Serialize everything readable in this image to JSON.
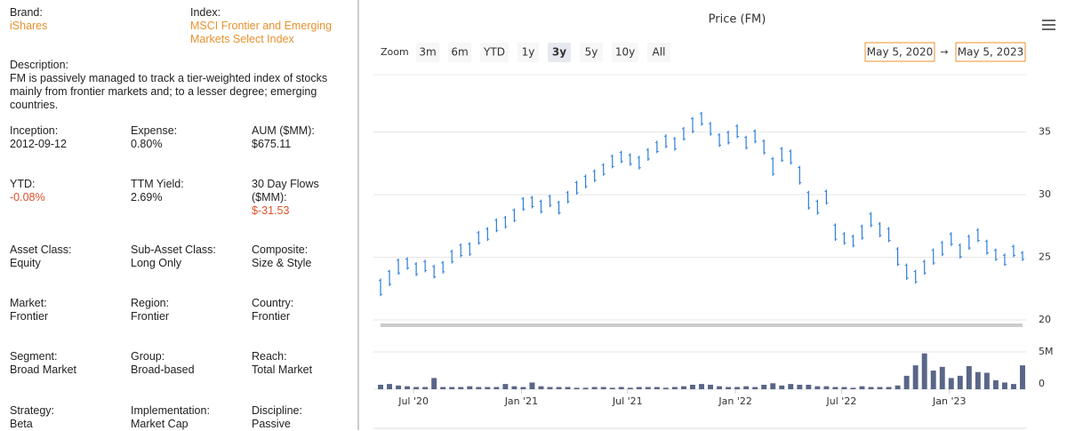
{
  "info": {
    "brand": {
      "label": "Brand:",
      "value": "iShares"
    },
    "index": {
      "label": "Index:",
      "value": "MSCI Frontier and Emerging Markets Select Index"
    },
    "description": {
      "label": "Description:",
      "value": "FM is passively managed to track a tier-weighted index of stocks mainly from frontier markets and; to a lesser degree; emerging countries."
    },
    "fields": [
      {
        "label": "Inception:",
        "value": "2012-09-12"
      },
      {
        "label": "Expense:",
        "value": "0.80%"
      },
      {
        "label": "AUM ($MM):",
        "value": "$675.11"
      },
      {
        "label": "YTD:",
        "value": "-0.08%",
        "negative": true
      },
      {
        "label": "TTM Yield:",
        "value": "2.69%"
      },
      {
        "label": "30 Day Flows ($MM):",
        "value": "$-31.53",
        "negative": true
      },
      {
        "label": "Asset Class:",
        "value": "Equity"
      },
      {
        "label": "Sub-Asset Class:",
        "value": "Long Only"
      },
      {
        "label": "Composite:",
        "value": "Size & Style"
      },
      {
        "label": "Market:",
        "value": "Frontier"
      },
      {
        "label": "Region:",
        "value": "Frontier"
      },
      {
        "label": "Country:",
        "value": "Frontier"
      },
      {
        "label": "Segment:",
        "value": "Broad Market"
      },
      {
        "label": "Group:",
        "value": "Broad-based"
      },
      {
        "label": "Reach:",
        "value": "Total Market"
      },
      {
        "label": "Strategy:",
        "value": "Beta"
      },
      {
        "label": "Implementation:",
        "value": "Market Cap"
      },
      {
        "label": "Discipline:",
        "value": "Passive"
      }
    ]
  },
  "chart_data": {
    "type": "ohlc",
    "title": "Price (FM)",
    "zoom": {
      "label": "Zoom",
      "buttons": [
        "3m",
        "6m",
        "YTD",
        "1y",
        "3y",
        "5y",
        "10y",
        "All"
      ],
      "selected": 4
    },
    "range": {
      "from": "May 5, 2020",
      "arrow": "→",
      "to": "May 5, 2023"
    },
    "xlim": [
      0,
      72
    ],
    "xticks": [
      {
        "value": 3.7,
        "label": "Jul '20"
      },
      {
        "value": 15.8,
        "label": "Jan '21"
      },
      {
        "value": 27.7,
        "label": "Jul '21"
      },
      {
        "value": 39.8,
        "label": "Jan '22"
      },
      {
        "value": 51.7,
        "label": "Jul '22"
      },
      {
        "value": 63.8,
        "label": "Jan '23"
      }
    ],
    "ylim": [
      20,
      39.5
    ],
    "yticks": [
      20,
      25,
      30,
      35
    ],
    "grid": true,
    "series": [
      {
        "color": "#2f7ed8",
        "high": [
          23.3,
          24.0,
          24.9,
          25.0,
          24.6,
          24.8,
          24.4,
          24.7,
          25.6,
          26.1,
          26.2,
          27.1,
          27.4,
          28.1,
          28.3,
          28.9,
          29.8,
          29.9,
          29.6,
          30.0,
          29.5,
          30.3,
          31.1,
          31.6,
          32.0,
          32.5,
          33.2,
          33.5,
          33.3,
          33.1,
          33.7,
          34.3,
          34.8,
          34.6,
          35.4,
          36.2,
          36.6,
          35.8,
          34.9,
          35.1,
          35.6,
          34.7,
          35.2,
          34.4,
          33.0,
          33.8,
          33.6,
          32.3,
          30.3,
          29.6,
          30.4,
          27.7,
          27.0,
          26.8,
          27.6,
          28.6,
          27.8,
          27.4,
          25.8,
          24.5,
          24.0,
          24.8,
          25.7,
          26.3,
          27.0,
          26.1,
          26.8,
          27.3,
          26.4,
          25.7,
          25.3,
          26.0,
          25.5
        ],
        "low": [
          21.9,
          22.7,
          23.6,
          24.0,
          23.5,
          23.8,
          23.3,
          23.7,
          24.5,
          25.0,
          25.1,
          26.0,
          26.3,
          27.0,
          27.3,
          27.8,
          28.7,
          28.9,
          28.5,
          29.0,
          28.4,
          29.3,
          30.0,
          30.5,
          31.0,
          31.5,
          32.1,
          32.5,
          32.3,
          32.0,
          32.7,
          33.3,
          33.7,
          33.5,
          34.3,
          34.9,
          35.5,
          34.7,
          33.8,
          34.0,
          34.5,
          33.6,
          34.1,
          33.2,
          31.5,
          32.6,
          32.4,
          30.8,
          28.8,
          28.4,
          29.2,
          26.3,
          26.0,
          25.8,
          26.4,
          27.4,
          26.6,
          26.2,
          24.3,
          23.2,
          22.9,
          23.6,
          24.4,
          25.1,
          25.9,
          24.9,
          25.6,
          26.2,
          25.2,
          24.7,
          24.3,
          25.0,
          24.7
        ]
      }
    ],
    "volume": {
      "color": "#5a6688",
      "ylim": [
        0,
        5000000
      ],
      "yticks": [
        0,
        {
          "value": 5000000,
          "label": "5M"
        }
      ],
      "values": [
        600000,
        700000,
        500000,
        400000,
        300000,
        300000,
        1500000,
        300000,
        300000,
        300000,
        400000,
        300000,
        300000,
        300000,
        700000,
        400000,
        300000,
        900000,
        400000,
        300000,
        300000,
        300000,
        200000,
        200000,
        300000,
        300000,
        200000,
        300000,
        200000,
        300000,
        300000,
        300000,
        200000,
        300000,
        400000,
        600000,
        700000,
        600000,
        400000,
        300000,
        300000,
        400000,
        300000,
        600000,
        800000,
        500000,
        700000,
        600000,
        600000,
        400000,
        400000,
        300000,
        300000,
        200000,
        400000,
        300000,
        300000,
        300000,
        500000,
        1800000,
        3200000,
        4800000,
        2500000,
        3000000,
        1500000,
        1800000,
        3100000,
        2300000,
        2200000,
        1200000,
        900000,
        700000,
        3200000
      ]
    }
  }
}
